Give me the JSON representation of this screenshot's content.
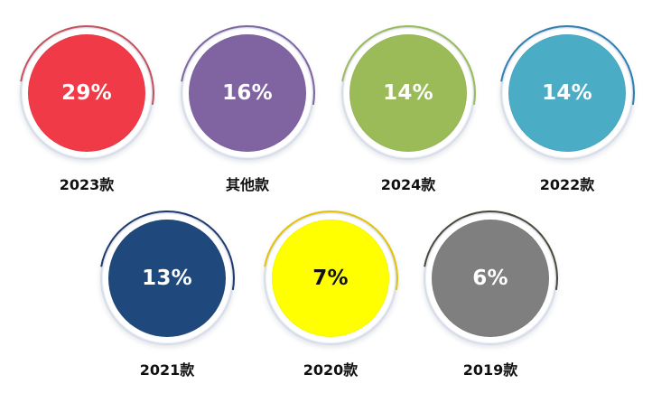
{
  "chart_data": {
    "type": "pie",
    "categories": [
      "2023款",
      "其他款",
      "2024款",
      "2022款",
      "2021款",
      "2020款",
      "2019款"
    ],
    "values": [
      29,
      16,
      14,
      14,
      13,
      7,
      6
    ],
    "value_labels": [
      "29%",
      "16%",
      "14%",
      "14%",
      "13%",
      "7%",
      "6%"
    ],
    "colors": [
      "#f03a47",
      "#8064a2",
      "#9bbb59",
      "#4bacc6",
      "#1f497d",
      "#ffff00",
      "#7f7f7f"
    ],
    "text_colors": [
      "#ffffff",
      "#ffffff",
      "#ffffff",
      "#ffffff",
      "#ffffff",
      "#111111",
      "#ffffff"
    ],
    "accent_colors": [
      "#c8505a",
      "#8064a2",
      "#9bbb59",
      "#2f7fb0",
      "#1f3a6b",
      "#e6c200",
      "#4a4a3a"
    ]
  }
}
